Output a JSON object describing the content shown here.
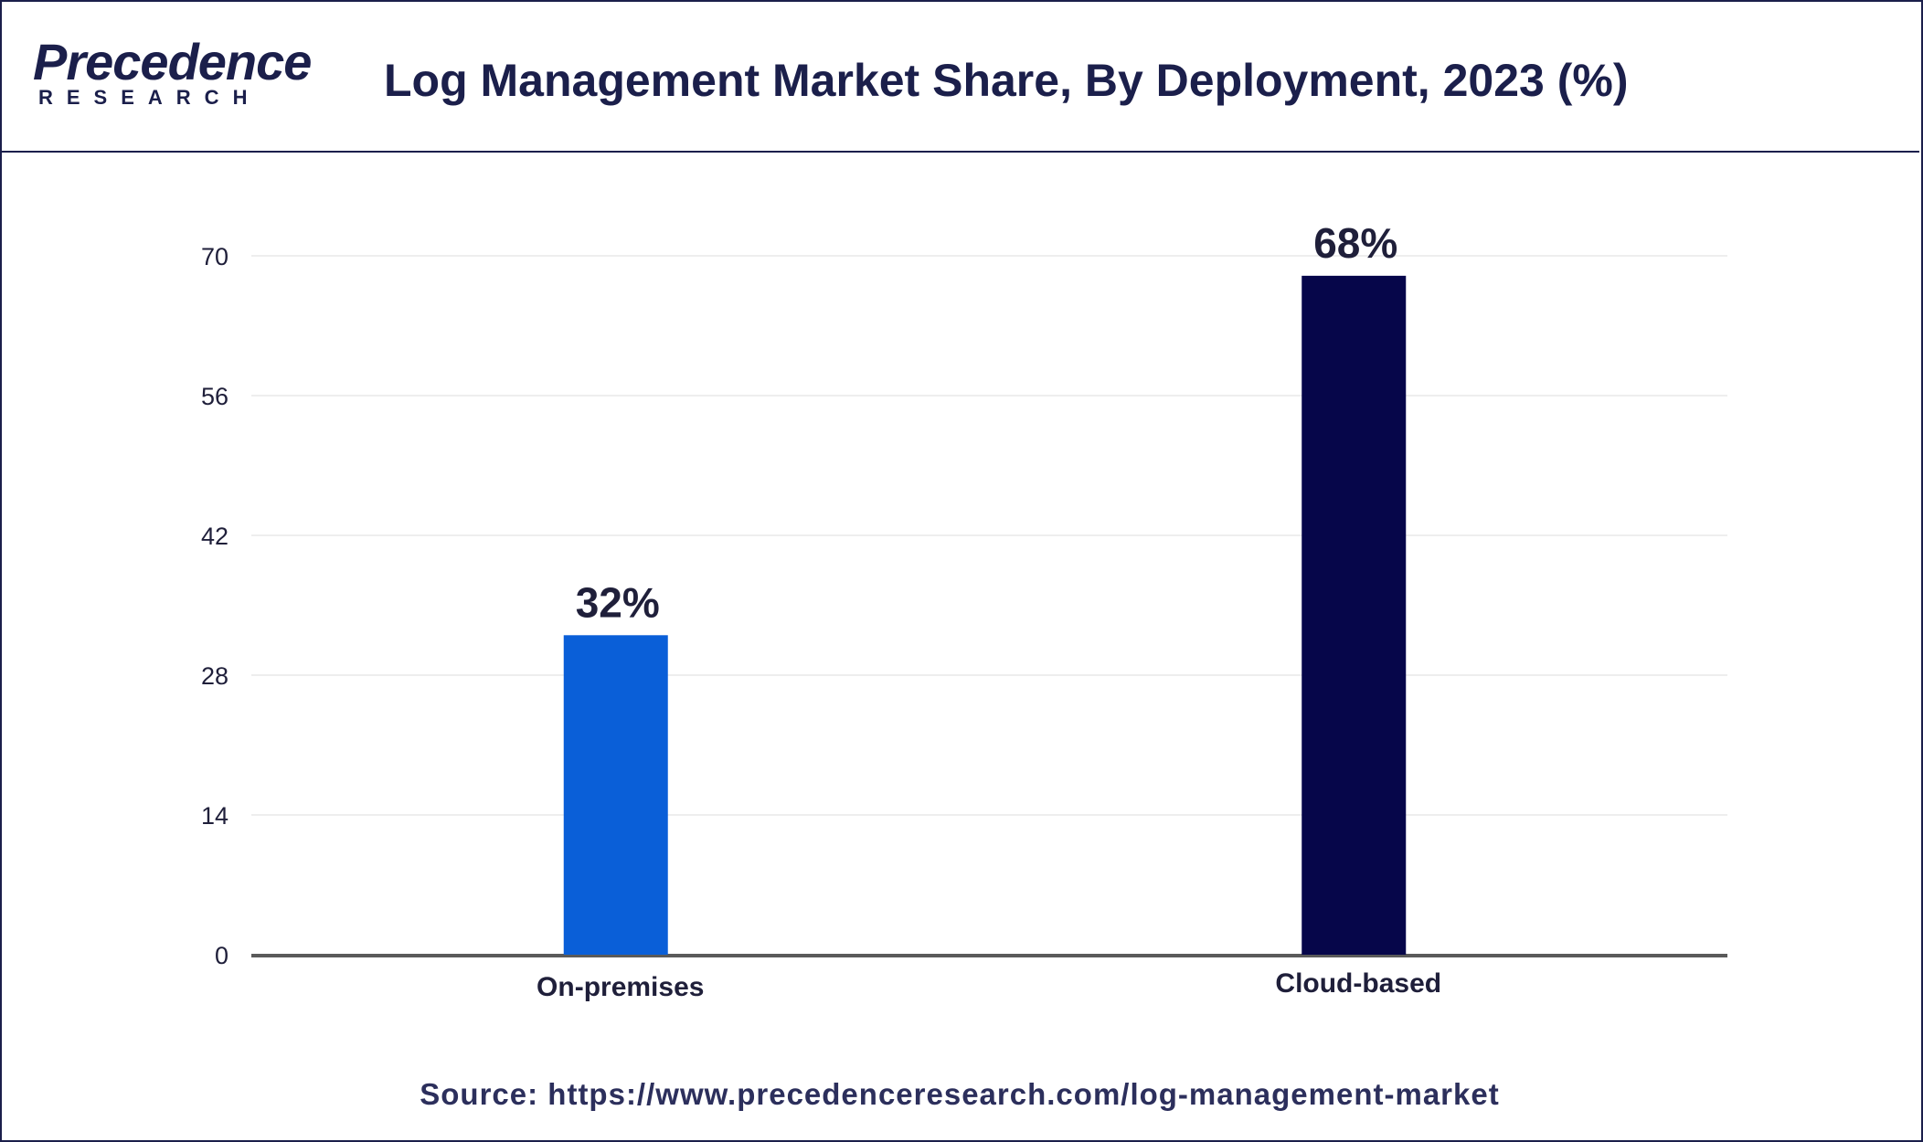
{
  "brand": {
    "name": "Precedence",
    "sub": "RESEARCH",
    "color": "#1b1f4b",
    "accent": "#0a5bd8"
  },
  "header": {
    "title": "Log Management Market Share, By Deployment, 2023 (%)"
  },
  "chart_data": {
    "type": "bar",
    "title": "Log Management Market Share, By Deployment, 2023 (%)",
    "xlabel": "",
    "ylabel": "",
    "categories": [
      "On-premises",
      "Cloud-based"
    ],
    "values": [
      32,
      68
    ],
    "data_labels": [
      "32%",
      "68%"
    ],
    "bar_colors": [
      "#0a5fd8",
      "#06064a"
    ],
    "ylim": [
      0,
      70
    ],
    "yticks": [
      0,
      14,
      28,
      42,
      56,
      70
    ],
    "grid": true,
    "legend": "none"
  },
  "footer": {
    "source": "Source: https://www.precedenceresearch.com/log-management-market"
  }
}
